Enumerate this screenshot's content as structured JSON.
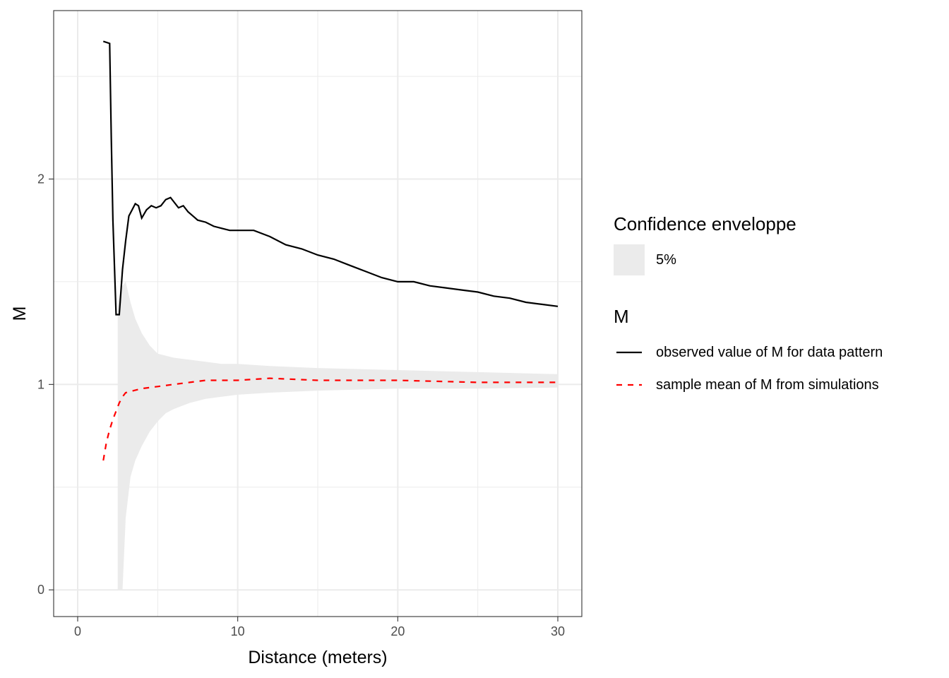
{
  "chart_data": {
    "type": "line",
    "xlabel": "Distance (meters)",
    "ylabel": "M",
    "xlim": [
      -1.5,
      31.5
    ],
    "ylim": [
      -0.13,
      2.82
    ],
    "x_ticks": [
      0,
      10,
      20,
      30
    ],
    "y_ticks": [
      0,
      1,
      2
    ],
    "x_tick_labels": [
      "0",
      "10",
      "20",
      "30"
    ],
    "y_tick_labels": [
      "0",
      "1",
      "2"
    ],
    "grid": true,
    "legend_placement": "right",
    "colors": {
      "observed": "#000000",
      "mean": "#ff0000",
      "envelope": "#ebebeb",
      "grid": "#ebebeb",
      "panel_border": "#333333"
    },
    "envelope": {
      "name": "5%",
      "x": [
        2.5,
        2.8,
        3.0,
        3.3,
        3.6,
        4.0,
        4.5,
        5.0,
        5.5,
        6.0,
        7.0,
        8.0,
        9.0,
        10.0,
        12.0,
        15.0,
        20.0,
        25.0,
        30.0
      ],
      "lower": [
        0.0,
        0.0,
        0.35,
        0.55,
        0.63,
        0.7,
        0.77,
        0.82,
        0.86,
        0.88,
        0.91,
        0.93,
        0.94,
        0.95,
        0.96,
        0.97,
        0.98,
        0.98,
        0.985
      ],
      "upper": [
        1.4,
        1.48,
        1.5,
        1.4,
        1.32,
        1.25,
        1.19,
        1.15,
        1.14,
        1.13,
        1.12,
        1.11,
        1.1,
        1.1,
        1.09,
        1.08,
        1.07,
        1.06,
        1.05
      ]
    },
    "series": [
      {
        "name": "observed value of M for data pattern",
        "style": "solid",
        "x": [
          1.6,
          2.0,
          2.1,
          2.2,
          2.4,
          2.6,
          2.8,
          3.0,
          3.2,
          3.4,
          3.6,
          3.8,
          4.0,
          4.3,
          4.6,
          4.9,
          5.2,
          5.5,
          5.8,
          6.0,
          6.3,
          6.6,
          6.9,
          7.2,
          7.5,
          8.0,
          8.5,
          9.0,
          9.5,
          10.0,
          10.5,
          11.0,
          12.0,
          13.0,
          14.0,
          15.0,
          16.0,
          17.0,
          18.0,
          19.0,
          20.0,
          21.0,
          22.0,
          23.0,
          24.0,
          25.0,
          26.0,
          27.0,
          28.0,
          29.0,
          30.0
        ],
        "values": [
          2.67,
          2.66,
          2.2,
          1.8,
          1.34,
          1.34,
          1.56,
          1.7,
          1.82,
          1.85,
          1.88,
          1.87,
          1.81,
          1.85,
          1.87,
          1.86,
          1.87,
          1.9,
          1.91,
          1.89,
          1.86,
          1.87,
          1.84,
          1.82,
          1.8,
          1.79,
          1.77,
          1.76,
          1.75,
          1.75,
          1.75,
          1.75,
          1.72,
          1.68,
          1.66,
          1.63,
          1.61,
          1.58,
          1.55,
          1.52,
          1.5,
          1.5,
          1.48,
          1.47,
          1.46,
          1.45,
          1.43,
          1.42,
          1.4,
          1.39,
          1.38
        ]
      },
      {
        "name": "sample mean of M from simulations",
        "style": "dashed",
        "x": [
          1.6,
          1.8,
          2.0,
          2.2,
          2.4,
          2.6,
          2.8,
          3.0,
          3.5,
          4.0,
          5.0,
          6.0,
          7.0,
          8.0,
          10.0,
          12.0,
          15.0,
          20.0,
          25.0,
          30.0
        ],
        "values": [
          0.63,
          0.72,
          0.78,
          0.83,
          0.87,
          0.91,
          0.94,
          0.96,
          0.97,
          0.98,
          0.99,
          1.0,
          1.01,
          1.02,
          1.02,
          1.03,
          1.02,
          1.02,
          1.01,
          1.01
        ]
      }
    ],
    "legend": {
      "fill_title": "Confidence enveloppe",
      "fill_label": "5%",
      "line_title": "M",
      "line_labels": [
        "observed value of M for data pattern",
        "sample mean of M from simulations"
      ]
    }
  }
}
